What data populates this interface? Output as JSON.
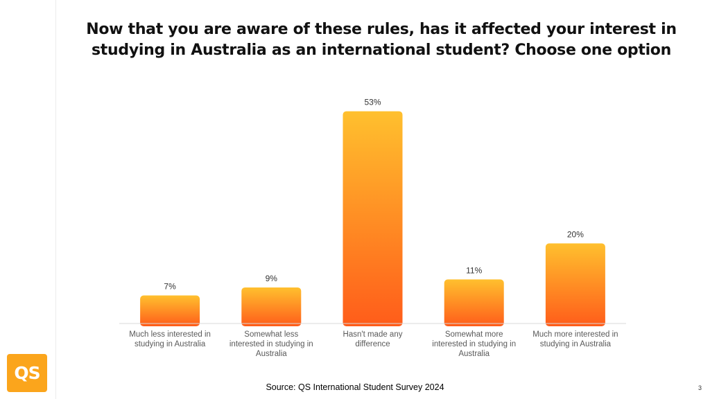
{
  "title": {
    "line1": "Now that you are aware of these rules, has it affected your interest in",
    "line2": "studying in Australia as an international student? Choose one option"
  },
  "chart_data": {
    "type": "bar",
    "categories": [
      [
        "Much less interested in",
        "studying in Australia"
      ],
      [
        "Somewhat less",
        "interested in studying in",
        "Australia"
      ],
      [
        "Hasn't made any",
        "difference"
      ],
      [
        "Somewhat more",
        "interested in studying in",
        "Australia"
      ],
      [
        "Much more interested in",
        "studying in Australia"
      ]
    ],
    "values": [
      7,
      9,
      53,
      11,
      20
    ],
    "value_labels": [
      "7%",
      "9%",
      "53%",
      "11%",
      "20%"
    ],
    "ylim": [
      0,
      55
    ],
    "grid": false,
    "bar_gradient": {
      "top": "#ffc02e",
      "bottom": "#ff5c1a"
    }
  },
  "footer": {
    "source": "Source: QS International Student Survey 2024",
    "page_number": "3",
    "logo_text": "QS",
    "logo_color": "#fba51c"
  }
}
